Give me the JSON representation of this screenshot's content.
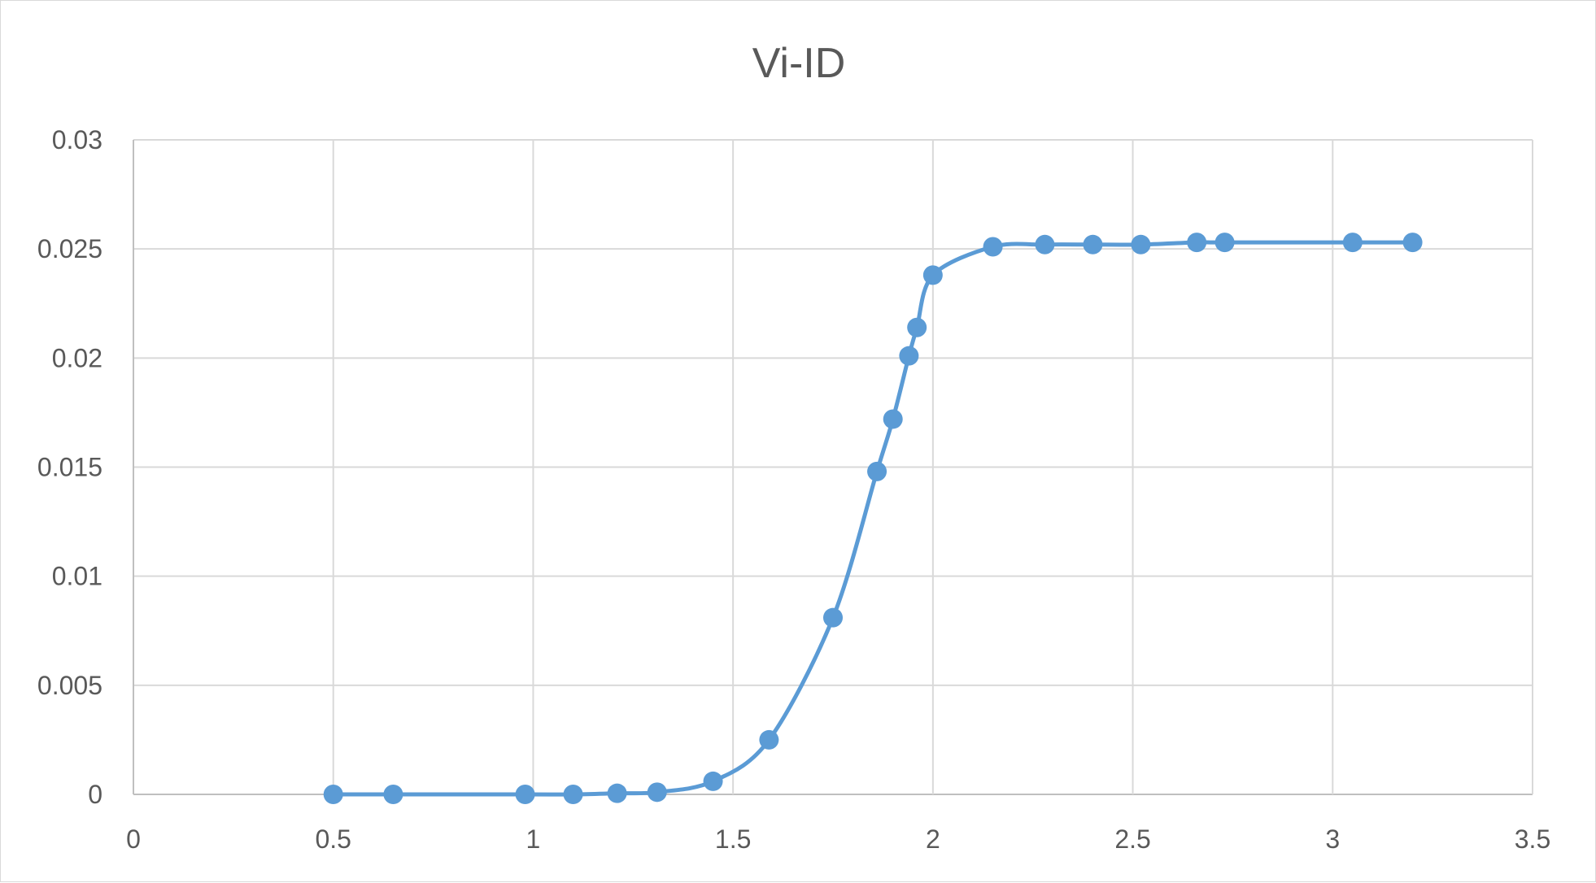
{
  "chart_data": {
    "type": "scatter",
    "title": "Vi-ID",
    "xlabel": "",
    "ylabel": "",
    "xlim": [
      0,
      3.5
    ],
    "ylim": [
      0,
      0.03
    ],
    "x_ticks": [
      "0",
      "0.5",
      "1",
      "1.5",
      "2",
      "2.5",
      "3",
      "3.5"
    ],
    "y_ticks": [
      "0",
      "0.005",
      "0.01",
      "0.015",
      "0.02",
      "0.025",
      "0.03"
    ],
    "grid": true,
    "smooth_line": true,
    "series_color": "#5b9bd5",
    "series": [
      {
        "x": [
          0.5,
          0.65,
          0.98,
          1.1,
          1.21,
          1.31,
          1.45,
          1.59,
          1.75,
          1.86,
          1.9,
          1.94,
          1.96,
          2.0,
          2.15,
          2.28,
          2.4,
          2.52,
          2.66,
          2.73,
          3.05,
          3.2
        ],
        "y": [
          0,
          0,
          0,
          0,
          5e-05,
          0.0001,
          0.0006,
          0.0025,
          0.0081,
          0.0148,
          0.0172,
          0.0201,
          0.0214,
          0.0238,
          0.0251,
          0.0252,
          0.0252,
          0.0252,
          0.0253,
          0.0253,
          0.0253,
          0.0253
        ]
      }
    ]
  }
}
